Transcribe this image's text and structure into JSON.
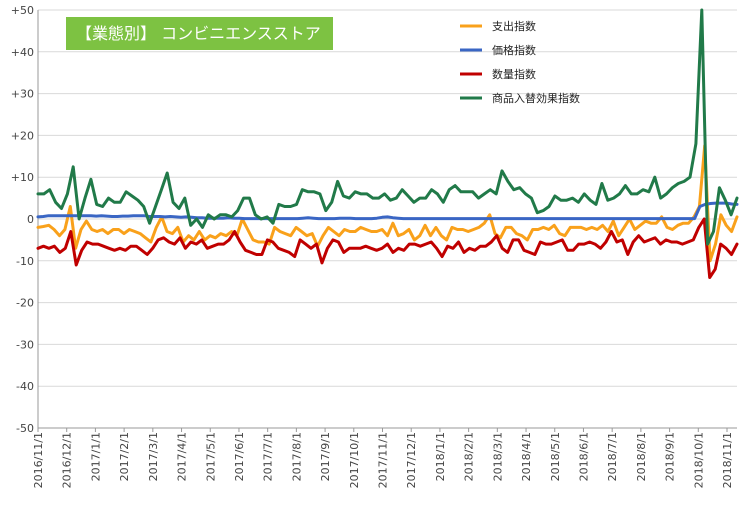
{
  "chart_data": {
    "type": "line",
    "title": "【業態別】 コンビニエンスストア",
    "title_bg": "#7dc242",
    "ylim": [
      -50,
      50
    ],
    "y_ticks": [
      "+50",
      "+40",
      "+30",
      "+20",
      "+10",
      "0",
      "-10",
      "-20",
      "-30",
      "-40",
      "-50"
    ],
    "x_ticks": [
      "2016/11/1",
      "2016/12/1",
      "2017/1/1",
      "2017/2/1",
      "2017/3/1",
      "2017/4/1",
      "2017/5/1",
      "2017/6/1",
      "2017/7/1",
      "2017/8/1",
      "2017/9/1",
      "2017/10/1",
      "2017/11/1",
      "2017/12/1",
      "2018/1/1",
      "2018/2/1",
      "2018/3/1",
      "2018/4/1",
      "2018/5/1",
      "2018/6/1",
      "2018/7/1",
      "2018/8/1",
      "2018/9/1",
      "2018/10/1",
      "2018/11/1"
    ],
    "grid": true,
    "legend_position": "top-right",
    "series": [
      {
        "name": "支出指数",
        "color": "#f9a11b",
        "values": [
          -2,
          -1.8,
          -1.5,
          -2.5,
          -4,
          -2.5,
          3,
          -7,
          -2.5,
          -0.5,
          -2.5,
          -3,
          -2.5,
          -3.5,
          -2.5,
          -2.5,
          -3.5,
          -2.5,
          -3,
          -3.5,
          -4.5,
          -5.5,
          -2,
          0.5,
          -3,
          -3.5,
          -2,
          -5.5,
          -4,
          -5,
          -3,
          -5,
          -4,
          -4.5,
          -3.5,
          -4,
          -3,
          -4,
          0,
          -2.5,
          -5,
          -5.5,
          -5.5,
          -6,
          -2,
          -3,
          -3.5,
          -4,
          -2,
          -3,
          -4,
          -3.5,
          -6.5,
          -4,
          -2,
          -3,
          -4,
          -2.5,
          -3,
          -3,
          -2,
          -2.5,
          -3,
          -3,
          -2.5,
          -4,
          -1,
          -4,
          -3.5,
          -2.5,
          -5,
          -4,
          -1.5,
          -4,
          -2,
          -4,
          -5,
          -2,
          -2.5,
          -2.5,
          -3,
          -2.5,
          -2,
          -1,
          1,
          -3.5,
          -4.5,
          -2,
          -2,
          -3.5,
          -4,
          -5,
          -2.5,
          -2.5,
          -2,
          -2.5,
          -1.5,
          -3.5,
          -4,
          -2,
          -2,
          -2,
          -2.5,
          -2,
          -2.5,
          -1.5,
          -3,
          -0.5,
          -4,
          -2,
          0,
          -2.5,
          -1.5,
          -0.5,
          -1,
          -1,
          0.5,
          -2,
          -2.5,
          -1.5,
          -1,
          -1,
          0.5,
          3,
          17.5,
          -10,
          -6,
          1,
          -1.5,
          -3,
          0.5
        ]
      },
      {
        "name": "価格指数",
        "color": "#3a66c4",
        "values": [
          0.5,
          0.6,
          0.8,
          0.8,
          0.8,
          0.8,
          0.8,
          0.8,
          0.8,
          0.8,
          0.8,
          0.7,
          0.8,
          0.7,
          0.6,
          0.6,
          0.7,
          0.7,
          0.8,
          0.8,
          0.8,
          0.6,
          0.6,
          0.6,
          0.5,
          0.6,
          0.5,
          0.4,
          0.5,
          0.4,
          0.3,
          0.3,
          0.2,
          0.2,
          0.2,
          0.2,
          0.3,
          0.2,
          0.2,
          0.1,
          0.1,
          0.1,
          0.1,
          0.1,
          0.1,
          0.1,
          0.1,
          0.1,
          0.1,
          0.1,
          0.2,
          0.3,
          0.2,
          0.1,
          0.1,
          0.1,
          0.1,
          0.2,
          0.2,
          0.2,
          0.1,
          0.1,
          0.1,
          0.1,
          0.2,
          0.4,
          0.5,
          0.3,
          0.2,
          0.1,
          0.1,
          0.1,
          0.1,
          0.1,
          0.1,
          0.1,
          0.1,
          0.1,
          0.1,
          0.1,
          0.1,
          0.1,
          0.1,
          0.1,
          0.1,
          0.1,
          0.1,
          0.1,
          0.1,
          0.1,
          0.1,
          0.1,
          0.1,
          0.1,
          0.1,
          0.1,
          0.1,
          0.1,
          0.1,
          0.1,
          0.1,
          0.1,
          0.1,
          0.1,
          0.1,
          0.1,
          0.1,
          0.1,
          0.1,
          0.1,
          0.1,
          0.1,
          0.1,
          0.1,
          0.1,
          0.1,
          0.1,
          0.1,
          0.1,
          0.1,
          0.1,
          0.1,
          0.1,
          0.1,
          0.1,
          3,
          3.5,
          3.7,
          3.8,
          3.8,
          3.8,
          3.6,
          3.5
        ]
      },
      {
        "name": "数量指数",
        "color": "#c00000",
        "values": [
          -7,
          -6.5,
          -7,
          -6.5,
          -8,
          -7,
          -3,
          -11,
          -7.5,
          -5.5,
          -6,
          -6,
          -6.5,
          -7,
          -7.5,
          -7,
          -7.5,
          -6.5,
          -6.5,
          -7.5,
          -8.5,
          -7,
          -5,
          -4.5,
          -5.5,
          -6,
          -4.5,
          -7,
          -5.5,
          -6,
          -5,
          -7,
          -6.5,
          -6,
          -6,
          -5,
          -3,
          -5.5,
          -7.5,
          -8,
          -8.5,
          -8.5,
          -5,
          -5.5,
          -7,
          -7.5,
          -8,
          -9,
          -5,
          -6,
          -7,
          -6,
          -10.5,
          -7,
          -5,
          -5.5,
          -8,
          -7,
          -7,
          -7,
          -6.5,
          -7,
          -7.5,
          -7,
          -6,
          -8,
          -7,
          -7.5,
          -6,
          -6,
          -6.5,
          -6,
          -5.5,
          -7,
          -9,
          -6.5,
          -7,
          -5.5,
          -8,
          -7,
          -7.5,
          -6.5,
          -6.5,
          -5.5,
          -4,
          -7,
          -8,
          -5,
          -5,
          -7.5,
          -8,
          -8.5,
          -5.5,
          -6,
          -6,
          -5.5,
          -5,
          -7.5,
          -7.5,
          -6,
          -6,
          -5.5,
          -6,
          -7,
          -5.5,
          -3,
          -5.5,
          -5,
          -8.5,
          -5.5,
          -4,
          -5.5,
          -5,
          -4.5,
          -6,
          -5,
          -5.5,
          -5.5,
          -6,
          -5.5,
          -5,
          -2,
          0,
          -14,
          -12,
          -6,
          -7,
          -8.5,
          -6
        ]
      },
      {
        "name": "商品入替効果指数",
        "color": "#217a49",
        "values": [
          6,
          6,
          7,
          4,
          2.5,
          6,
          12.5,
          0,
          5,
          9.5,
          3.5,
          3,
          5,
          4,
          4,
          6.5,
          5.5,
          4.5,
          3,
          -1,
          3,
          7,
          11,
          4,
          2.5,
          5,
          -1.5,
          0,
          -2,
          1,
          0,
          1,
          1,
          0.5,
          2,
          5,
          5,
          1,
          0,
          0.5,
          -1,
          3.5,
          3,
          3,
          3.5,
          7,
          6.5,
          6.5,
          6,
          2,
          4,
          9,
          5.5,
          5,
          6.5,
          6,
          6,
          5,
          5,
          6,
          4.5,
          5,
          7,
          5.5,
          4,
          5,
          5,
          7,
          6,
          4,
          7,
          8,
          6.5,
          6.5,
          6.5,
          5,
          6,
          7,
          6,
          11.5,
          9,
          7,
          7.5,
          6,
          5,
          1.5,
          2,
          3,
          5.5,
          4.5,
          4.5,
          5,
          4,
          6,
          4.5,
          3.5,
          8.5,
          4.5,
          5,
          6,
          8,
          6,
          6,
          7,
          6.5,
          10,
          5,
          6,
          7.5,
          8.5,
          9,
          10,
          18,
          50,
          -6,
          -3,
          7.5,
          4.5,
          1,
          5
        ]
      }
    ]
  }
}
